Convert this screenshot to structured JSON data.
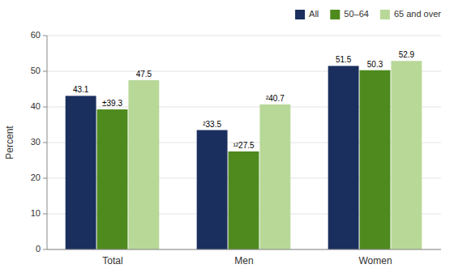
{
  "chart_data": {
    "type": "bar",
    "categories": [
      "Total",
      "Men",
      "Women"
    ],
    "series": [
      {
        "name": "All",
        "color": "#1b2f5e",
        "values": [
          43.1,
          33.5,
          51.5
        ],
        "value_labels": [
          "43.1",
          "²33.5",
          "51.5"
        ]
      },
      {
        "name": "50–64",
        "color": "#4e8a1e",
        "values": [
          39.3,
          27.5,
          50.3
        ],
        "value_labels": [
          "±39.3",
          "¹²27.5",
          "50.3"
        ]
      },
      {
        "name": "65 and over",
        "color": "#b8d898",
        "values": [
          47.5,
          40.7,
          52.9
        ],
        "value_labels": [
          "47.5",
          "²40.7",
          "52.9"
        ]
      }
    ],
    "ylabel": "Percent",
    "ylim": [
      0,
      60
    ],
    "yticks": [
      0,
      10,
      20,
      30,
      40,
      50,
      60
    ],
    "grid": true,
    "legend": "upper right",
    "data_labels": true
  }
}
